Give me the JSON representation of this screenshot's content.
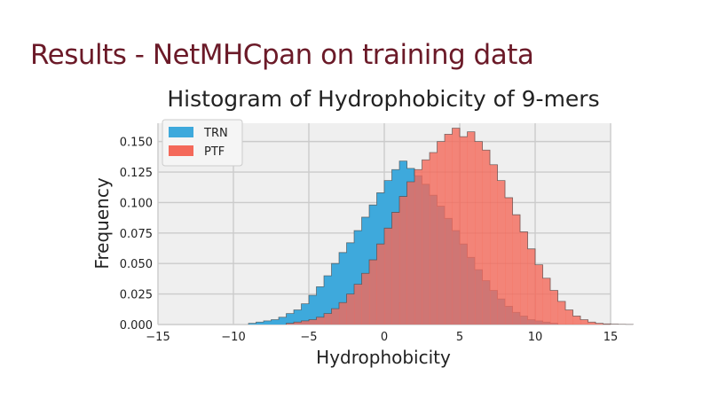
{
  "slide": {
    "title": "Results - NetMHCpan on training data"
  },
  "chart_data": {
    "type": "histogram",
    "title": "Histogram of Hydrophobicity of 9-mers",
    "xlabel": "Hydrophobicity",
    "ylabel": "Frequency",
    "xlim": [
      -15,
      15
    ],
    "ylim": [
      0,
      0.165
    ],
    "xticks": [
      "−15",
      "−10",
      "−5",
      "0",
      "5",
      "10",
      "15"
    ],
    "xtick_values": [
      -15,
      -10,
      -5,
      0,
      5,
      10,
      15
    ],
    "yticks": [
      "0.000",
      "0.025",
      "0.050",
      "0.075",
      "0.100",
      "0.125",
      "0.150"
    ],
    "ytick_values": [
      0,
      0.025,
      0.05,
      0.075,
      0.1,
      0.125,
      0.15
    ],
    "grid": true,
    "legend_position": "top-left",
    "bin_width": 0.5,
    "series": [
      {
        "name": "TRN",
        "color": "#3ea9dc",
        "x_start": -9.0,
        "values": [
          0.001,
          0.002,
          0.003,
          0.004,
          0.006,
          0.009,
          0.012,
          0.017,
          0.024,
          0.031,
          0.04,
          0.05,
          0.059,
          0.067,
          0.077,
          0.088,
          0.098,
          0.108,
          0.118,
          0.127,
          0.134,
          0.128,
          0.122,
          0.115,
          0.106,
          0.097,
          0.087,
          0.077,
          0.066,
          0.055,
          0.045,
          0.036,
          0.028,
          0.021,
          0.015,
          0.01,
          0.007,
          0.004,
          0.003,
          0.002,
          0.001
        ]
      },
      {
        "name": "PTF",
        "color": "#f4695a",
        "x_start": -6.5,
        "values": [
          0.001,
          0.002,
          0.003,
          0.004,
          0.006,
          0.009,
          0.013,
          0.018,
          0.025,
          0.033,
          0.042,
          0.053,
          0.066,
          0.079,
          0.092,
          0.105,
          0.117,
          0.127,
          0.135,
          0.141,
          0.15,
          0.156,
          0.161,
          0.154,
          0.158,
          0.15,
          0.143,
          0.131,
          0.118,
          0.104,
          0.09,
          0.076,
          0.062,
          0.049,
          0.038,
          0.028,
          0.019,
          0.012,
          0.007,
          0.004,
          0.002,
          0.001,
          0.0005,
          0.0003,
          0.0002,
          0.0001
        ]
      }
    ],
    "overlap_color": "#c25a50"
  }
}
